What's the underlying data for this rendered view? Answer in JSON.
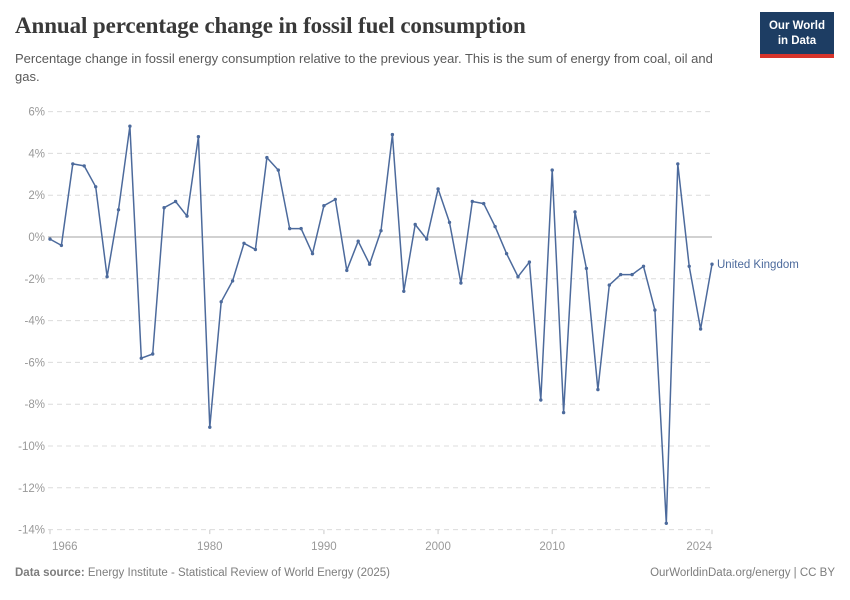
{
  "header": {
    "title": "Annual percentage change in fossil fuel consumption",
    "subtitle": "Percentage change in fossil energy consumption relative to the previous year. This is the sum of energy from coal, oil and gas.",
    "logo_line1": "Our World",
    "logo_line2": "in Data"
  },
  "colors": {
    "line": "#4C6A9C",
    "grid": "#dcdcdc",
    "zero_line": "#a3a3a3",
    "tick": "#c9c9c9",
    "axis_text": "#999999",
    "logo_bg": "#1d3d63",
    "logo_accent": "#d7342b"
  },
  "chart_data": {
    "type": "line",
    "title": "Annual percentage change in fossil fuel consumption",
    "xlabel": "",
    "ylabel": "",
    "unit": "%",
    "xlim": [
      1966,
      2024
    ],
    "ylim": [
      -14,
      6
    ],
    "grid": "horizontal-dashed",
    "zero_line": true,
    "legend_position": "end-of-line-label",
    "x_ticks": [
      1966,
      1980,
      1990,
      2000,
      2010,
      2024
    ],
    "x_tick_labels": [
      "1966",
      "1980",
      "1990",
      "2000",
      "2010",
      "2024"
    ],
    "y_ticks": [
      6,
      4,
      2,
      0,
      -2,
      -4,
      -6,
      -8,
      -10,
      -12,
      -14
    ],
    "y_tick_labels": [
      "6%",
      "4%",
      "2%",
      "0%",
      "-2%",
      "-4%",
      "-6%",
      "-8%",
      "-10%",
      "-12%",
      "-14%"
    ],
    "series": [
      {
        "name": "United Kingdom",
        "color": "#4C6A9C",
        "x": [
          1966,
          1967,
          1968,
          1969,
          1970,
          1971,
          1972,
          1973,
          1974,
          1975,
          1976,
          1977,
          1978,
          1979,
          1980,
          1981,
          1982,
          1983,
          1984,
          1985,
          1986,
          1987,
          1988,
          1989,
          1990,
          1991,
          1992,
          1993,
          1994,
          1995,
          1996,
          1997,
          1998,
          1999,
          2000,
          2001,
          2002,
          2003,
          2004,
          2005,
          2006,
          2007,
          2008,
          2009,
          2010,
          2011,
          2012,
          2013,
          2014,
          2015,
          2016,
          2017,
          2018,
          2019,
          2020,
          2021,
          2022,
          2023,
          2024
        ],
        "values": [
          -0.1,
          -0.4,
          3.5,
          3.4,
          2.4,
          -1.9,
          1.3,
          5.3,
          -5.8,
          -5.6,
          1.4,
          1.7,
          1.0,
          4.8,
          -9.1,
          -3.1,
          -2.1,
          -0.3,
          -0.6,
          3.8,
          3.2,
          0.4,
          0.4,
          -0.8,
          1.5,
          1.8,
          -1.6,
          -0.2,
          -1.3,
          0.3,
          4.9,
          -2.6,
          0.6,
          -0.1,
          2.3,
          0.7,
          -2.2,
          1.7,
          1.6,
          0.5,
          -0.8,
          -1.9,
          -1.2,
          -7.8,
          3.2,
          -8.4,
          1.2,
          -1.5,
          -7.3,
          -2.3,
          -1.8,
          -1.8,
          -1.4,
          -3.5,
          -13.7,
          3.5,
          -1.4,
          -4.4,
          -1.3
        ]
      }
    ]
  },
  "footer": {
    "source_label": "Data source:",
    "source_text": "Energy Institute - Statistical Review of World Energy (2025)",
    "rights": "OurWorldinData.org/energy | CC BY"
  }
}
